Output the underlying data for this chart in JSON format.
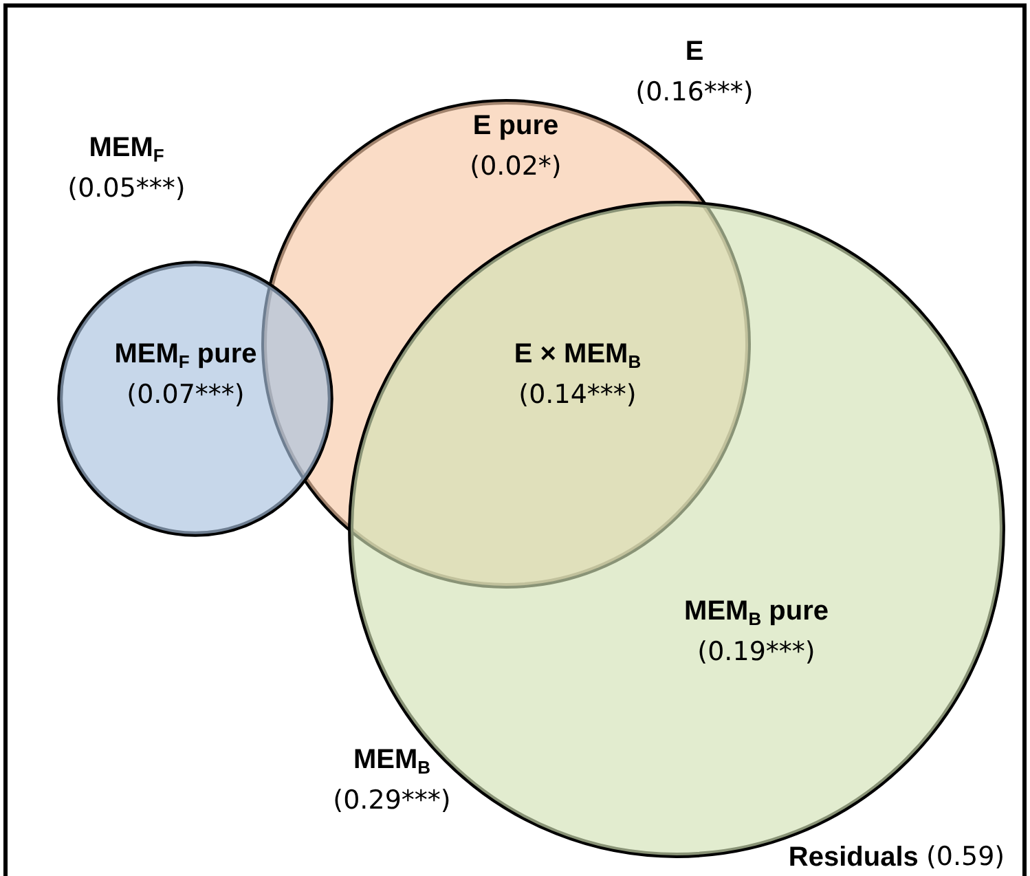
{
  "chart_data": {
    "type": "other",
    "categories": [
      "E",
      "MEM$_{F}$",
      "MEM$_{B}$",
      "E pure",
      "MEM$_{F}$ pure",
      "E × MEM$_{B}$",
      "MEM$_{B}$ pure",
      "Residuals"
    ],
    "values": [
      0.16,
      0.05,
      0.29,
      0.02,
      0.07,
      0.14,
      0.19,
      0.59
    ],
    "value_labels": [
      "(0.16***)",
      "(0.05***)",
      "(0.29***)",
      "(0.02*)",
      "(0.07***)",
      "(0.14***)",
      "(0.19***)",
      "(0.59)"
    ],
    "colors": [
      "#f8c9a8",
      "#a9c1de",
      "#d3e2b5",
      null,
      null,
      null,
      null,
      null
    ]
  }
}
